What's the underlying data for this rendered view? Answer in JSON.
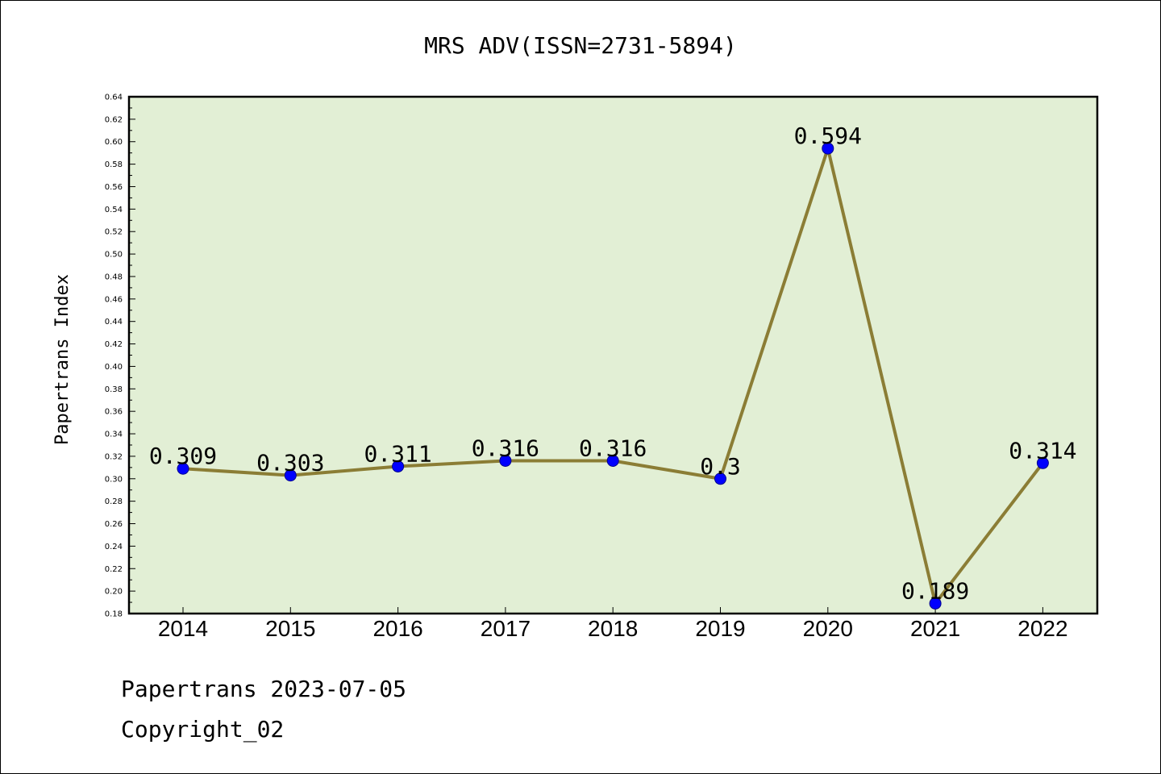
{
  "chart_data": {
    "type": "line",
    "title": "MRS ADV(ISSN=2731-5894)",
    "ylabel": "Papertrans Index",
    "xlabel": "",
    "categories": [
      "2014",
      "2015",
      "2016",
      "2017",
      "2018",
      "2019",
      "2020",
      "2021",
      "2022"
    ],
    "values": [
      0.309,
      0.303,
      0.311,
      0.316,
      0.316,
      0.3,
      0.594,
      0.189,
      0.314
    ],
    "data_labels": [
      "0.309",
      "0.303",
      "0.311",
      "0.316",
      "0.316",
      "0.3",
      "0.594",
      "0.189",
      "0.314"
    ],
    "ylim": [
      0.18,
      0.64
    ],
    "yticks": [
      "0.18",
      "0.20",
      "0.22",
      "0.24",
      "0.26",
      "0.28",
      "0.30",
      "0.32",
      "0.34",
      "0.36",
      "0.38",
      "0.40",
      "0.42",
      "0.44",
      "0.46",
      "0.48",
      "0.50",
      "0.52",
      "0.54",
      "0.56",
      "0.58",
      "0.60",
      "0.62",
      "0.64"
    ],
    "grid": false,
    "legend": "none",
    "colors": {
      "plot_background": "#e2efd5",
      "line": "#8b7d35",
      "marker": "#0000ff"
    }
  },
  "footer": {
    "date_line": "Papertrans 2023-07-05",
    "copyright": "Copyright_02"
  }
}
